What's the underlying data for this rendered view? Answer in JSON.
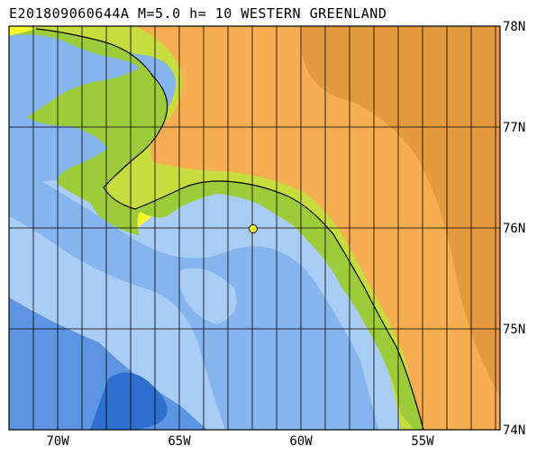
{
  "title": "E201809060644A M=5.0 h= 10 WESTERN GREENLAND",
  "lat_labels": [
    "78N",
    "77N",
    "76N",
    "75N",
    "74N"
  ],
  "lon_labels": [
    "70W",
    "65W",
    "60W",
    "55W"
  ],
  "colors": {
    "deep_sea": "#2f6fcf",
    "mid_sea": "#5d95e2",
    "shallow_sea": "#86b4ef",
    "coast_sea": "#a9cdf5",
    "green_low": "#9ccc3a",
    "green_mid": "#c7dc3f",
    "yellow": "#f8f82a",
    "land_orange": "#f7ae52",
    "land_dark": "#e49a3f",
    "grid": "#000000",
    "epicenter": "#f8f82a"
  }
}
